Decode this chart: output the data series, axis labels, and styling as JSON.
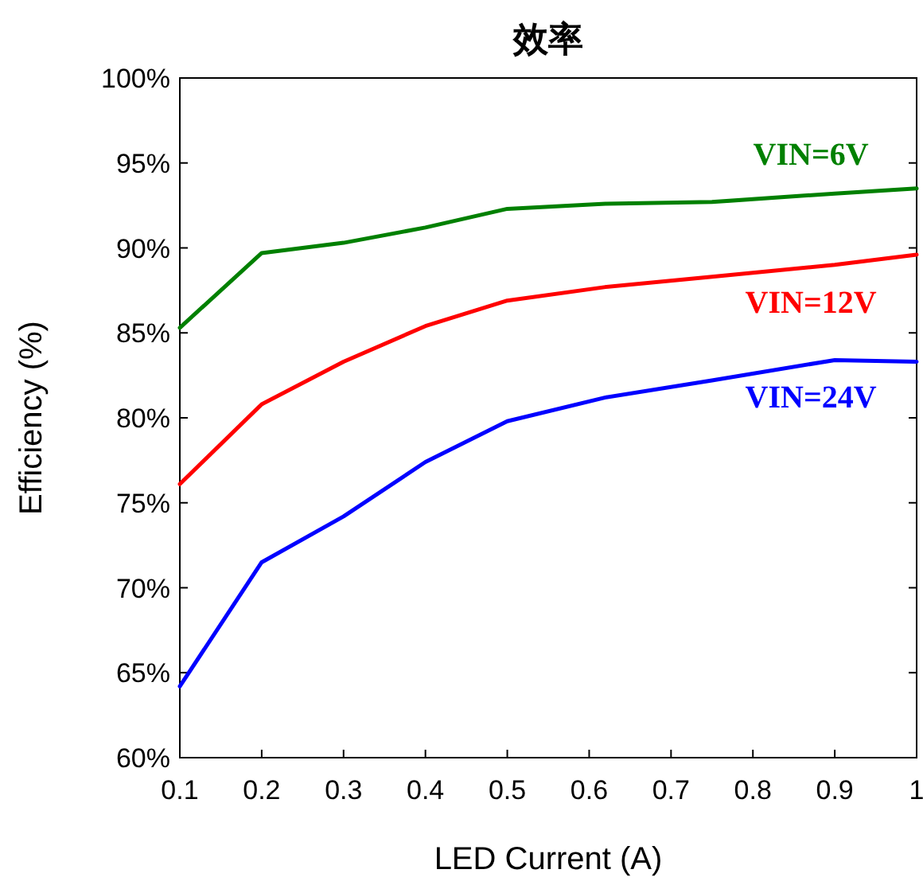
{
  "chart_data": {
    "type": "line",
    "title": "效率",
    "xlabel": "LED Current (A)",
    "ylabel": "Efficiency (%)",
    "xlim": [
      0.1,
      1
    ],
    "xticks": [
      0.1,
      0.2,
      0.3,
      0.4,
      0.5,
      0.6,
      0.7,
      0.8,
      0.9,
      1
    ],
    "ylim": [
      60,
      100
    ],
    "yticks": [
      {
        "value": 60,
        "label": "60%"
      },
      {
        "value": 65,
        "label": "65%"
      },
      {
        "value": 70,
        "label": "70%"
      },
      {
        "value": 75,
        "label": "75%"
      },
      {
        "value": 80,
        "label": "80%"
      },
      {
        "value": 85,
        "label": "85%"
      },
      {
        "value": 90,
        "label": "90%"
      },
      {
        "value": 95,
        "label": "95%"
      },
      {
        "value": 100,
        "label": "100%"
      }
    ],
    "x": [
      0.1,
      0.2,
      0.3,
      0.4,
      0.5,
      0.62,
      0.75,
      0.9,
      1
    ],
    "series": [
      {
        "name": "VIN=6V",
        "color": "#008000",
        "values": [
          85.3,
          89.7,
          90.3,
          91.2,
          92.3,
          92.6,
          92.7,
          93.2,
          93.5
        ]
      },
      {
        "name": "VIN=12V",
        "color": "#ff0000",
        "values": [
          76.1,
          80.8,
          83.3,
          85.4,
          86.9,
          87.7,
          88.3,
          89.0,
          89.6
        ]
      },
      {
        "name": "VIN=24V",
        "color": "#0000ff",
        "values": [
          64.2,
          71.5,
          74.2,
          77.4,
          79.8,
          81.2,
          82.2,
          83.4,
          83.3
        ]
      }
    ],
    "grid": false,
    "marker": "none",
    "line_style": "solid"
  }
}
